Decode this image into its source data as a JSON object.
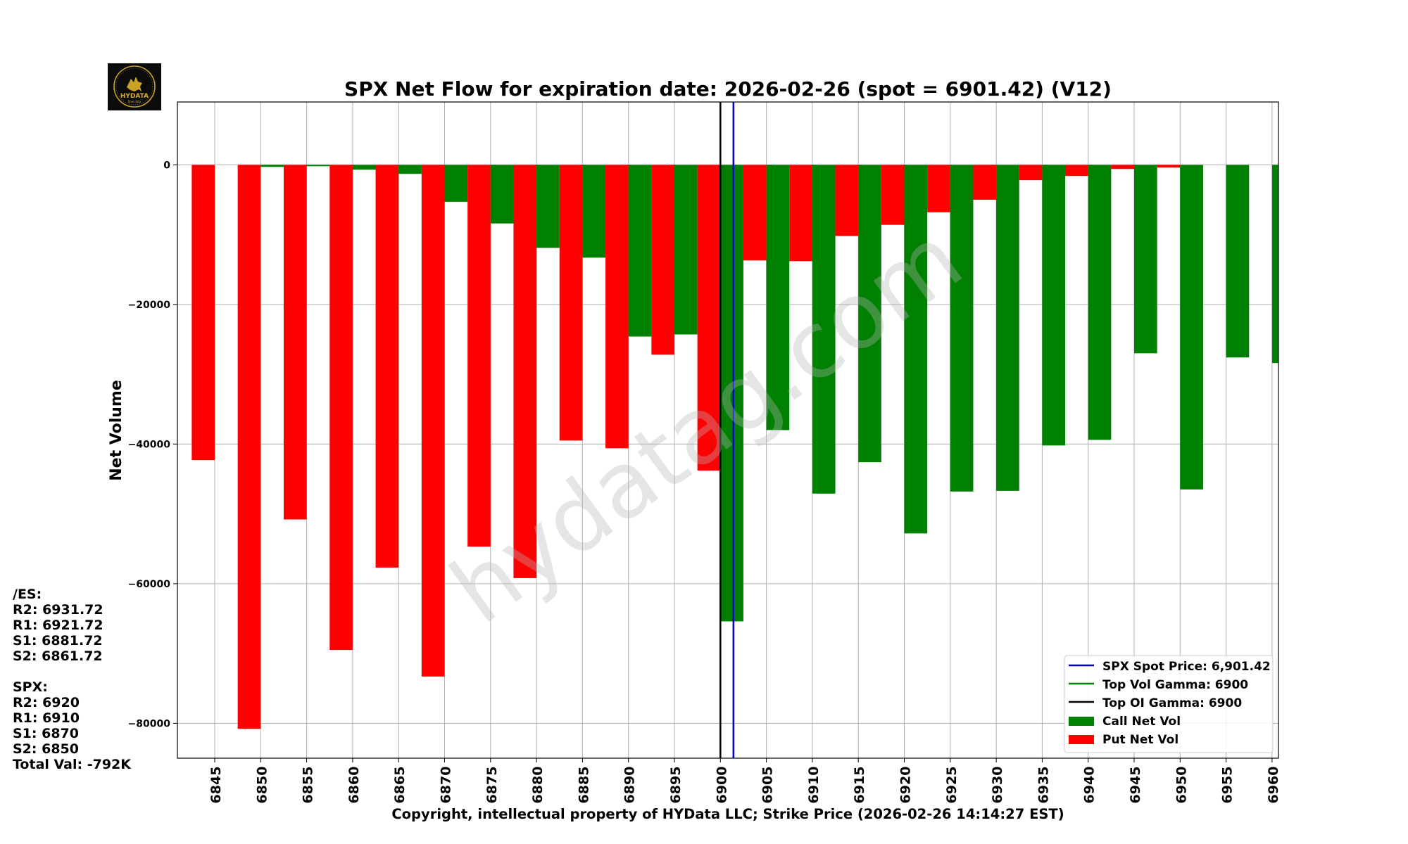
{
  "logo": {
    "text": "HYDATA",
    "tagline": "flow data"
  },
  "watermark": "hydatag.com",
  "side_panel": {
    "es_header": "/ES:",
    "es_lines": [
      "R2: 6931.72",
      "R1: 6921.72",
      "S1: 6881.72",
      "S2: 6861.72"
    ],
    "spx_header": "SPX:",
    "spx_lines": [
      "R2: 6920",
      "R1: 6910",
      "S1: 6870",
      "S2: 6850"
    ],
    "total": "Total Val: -792K"
  },
  "colors": {
    "call": "#008000",
    "put": "#ff0000",
    "spot": "#0000cc",
    "top_vol": "#008000",
    "top_oi": "#000000",
    "grid": "#b0b0b0"
  },
  "chart_data": {
    "type": "bar",
    "title": "SPX Net Flow for expiration date: 2026-02-26 (spot = 6901.42) (V12)",
    "xlabel": "Copyright, intellectual property of HYData LLC; Strike Price (2026-02-26 14:14:27 EST)",
    "ylabel": "Net Volume",
    "categories": [
      "6845",
      "6850",
      "6855",
      "6860",
      "6865",
      "6870",
      "6875",
      "6880",
      "6885",
      "6890",
      "6895",
      "6900",
      "6905",
      "6910",
      "6915",
      "6920",
      "6925",
      "6930",
      "6935",
      "6940",
      "6945",
      "6950",
      "6955",
      "6960"
    ],
    "series": [
      {
        "name": "Put Net Vol",
        "values": [
          -42300,
          -80800,
          -50800,
          -69500,
          -57700,
          -73300,
          -54700,
          -59200,
          -39500,
          -40600,
          -27200,
          -43800,
          -13700,
          -13800,
          -10200,
          -8600,
          -6800,
          -5000,
          -2200,
          -1600,
          -600,
          -400,
          0,
          0
        ]
      },
      {
        "name": "Call Net Vol",
        "values": [
          0,
          -300,
          -200,
          -700,
          -1300,
          -5300,
          -8400,
          -11900,
          -13300,
          -24600,
          -24300,
          -65400,
          -38000,
          -47100,
          -42600,
          -52800,
          -46800,
          -46700,
          -40200,
          -39400,
          -27000,
          -46500,
          -27600,
          -28400
        ]
      }
    ],
    "ylim": [
      -85000,
      9000
    ],
    "yticks": [
      0,
      -20000,
      -40000,
      -60000,
      -80000
    ],
    "ytick_labels": [
      "0",
      "−20000",
      "−40000",
      "−60000",
      "−80000"
    ],
    "spot_price": 6901.42,
    "top_vol_gamma": 6900,
    "top_oi_gamma": 6900,
    "legend": {
      "position": "lower-right",
      "entries": [
        "SPX Spot Price: 6,901.42",
        "Top Vol Gamma: 6900",
        "Top OI Gamma: 6900",
        "Call Net Vol",
        "Put Net Vol"
      ]
    },
    "grid": true
  }
}
